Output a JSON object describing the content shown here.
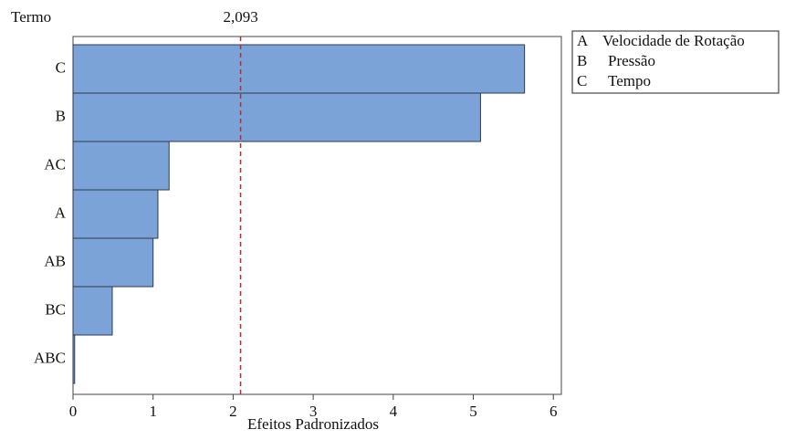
{
  "chart_data": {
    "type": "bar",
    "orientation": "horizontal",
    "y_label": "Termo",
    "x_label": "Efeitos Padronizados",
    "categories": [
      "C",
      "B",
      "AC",
      "A",
      "AB",
      "BC",
      "ABC"
    ],
    "values": [
      5.64,
      5.09,
      1.2,
      1.06,
      1.0,
      0.49,
      0.02
    ],
    "color": "#7ba3d8",
    "xlim": [
      0,
      6.1
    ],
    "xticks": [
      0,
      1,
      2,
      3,
      4,
      5,
      6
    ],
    "reference_line": {
      "value": 2.093,
      "label": "2,093",
      "color": "#b03030"
    },
    "legend": [
      {
        "key": "A",
        "label": "Velocidade de Rotação"
      },
      {
        "key": "B",
        "label": "Pressão"
      },
      {
        "key": "C",
        "label": "Tempo"
      }
    ]
  }
}
